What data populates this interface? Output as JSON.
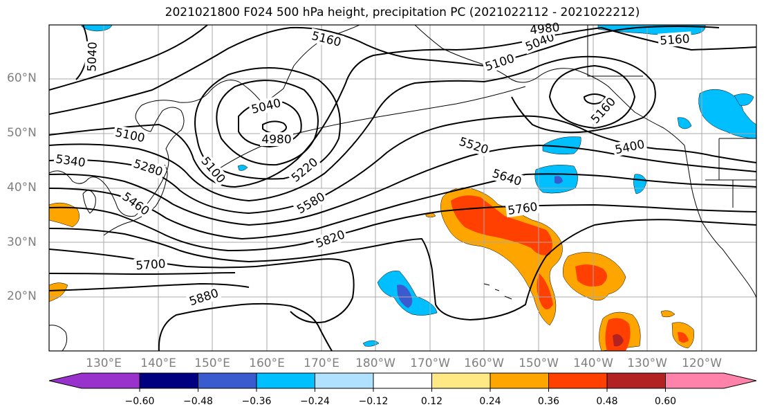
{
  "title": "2021021800 F024 500 hPa height, precipitation PC (2021022112 - 2021022212)",
  "lat_labels": [
    "60°N",
    "50°N",
    "40°N",
    "30°N",
    "20°N"
  ],
  "lon_labels": [
    "130°E",
    "140°E",
    "150°E",
    "160°E",
    "170°E",
    "180°W",
    "170°W",
    "160°W",
    "150°W",
    "140°W",
    "130°W",
    "120°W"
  ],
  "contour_labels": [
    "5040",
    "5160",
    "4980",
    "5040",
    "5100",
    "5160",
    "5100",
    "5040",
    "4980",
    "5160",
    "5340",
    "5280",
    "5100",
    "5220",
    "5520",
    "5400",
    "5460",
    "5580",
    "5640",
    "5760",
    "5820",
    "5700",
    "5880"
  ],
  "colorbar": {
    "ticks": [
      "−0.60",
      "−0.48",
      "−0.36",
      "−0.24",
      "−0.12",
      "0.12",
      "0.24",
      "0.36",
      "0.48",
      "0.60"
    ],
    "colors": [
      "#9932cc",
      "#000080",
      "#3a5bd0",
      "#00bfff",
      "#b0e2ff",
      "#ffffff",
      "#ffe985",
      "#ffa500",
      "#ff4000",
      "#b22222",
      "#ff82ab"
    ]
  },
  "colors": {
    "contour": "#000000",
    "coast": "#000000",
    "grid": "#a9a9a9",
    "axis_label": "#7f7f7f"
  }
}
